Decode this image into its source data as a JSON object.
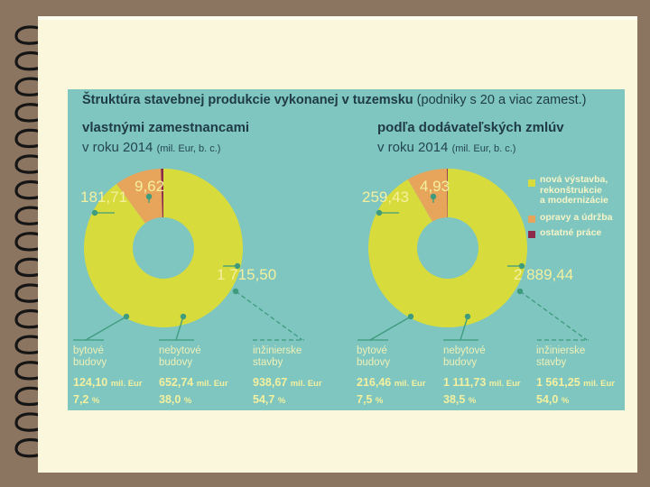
{
  "title": {
    "bold": "Štruktúra stavebnej produkcie vykonanej v tuzemsku",
    "rest": " (podniky s 20 a viac zamest.)"
  },
  "colors": {
    "new": "#d7dc3c",
    "repair": "#e6a55a",
    "other": "#8e2a4a",
    "panel": "#7ec6bf",
    "text_dark": "#1f3a44"
  },
  "legend": [
    {
      "key": "new",
      "label": "nová výstavba,\nrekonštrukcie\na modernizácie"
    },
    {
      "key": "repair",
      "label": "opravy a údržba"
    },
    {
      "key": "other",
      "label": "ostatné práce"
    }
  ],
  "charts": [
    {
      "heading": "vlastnými zamestnancami",
      "year": "v roku 2014",
      "unit": "(mil. Eur,  b. c.)",
      "labels": {
        "new": "1 715,50",
        "repair": "181,71",
        "other": "9,62"
      },
      "breakdown": [
        {
          "label": "bytové\nbudovy",
          "amount": "124,10",
          "unit": "mil. Eur",
          "pct": "7,2",
          "pct_unit": "%"
        },
        {
          "label": "nebytové\nbudovy",
          "amount": "652,74",
          "unit": "mil. Eur",
          "pct": "38,0",
          "pct_unit": "%"
        },
        {
          "label": "inžinierske\nstavby",
          "amount": "938,67",
          "unit": "mil. Eur",
          "pct": "54,7",
          "pct_unit": "%"
        }
      ]
    },
    {
      "heading": "podľa dodávateľských zmlúv",
      "year": "v roku 2014",
      "unit": "(mil. Eur,  b. c.)",
      "labels": {
        "new": "2 889,44",
        "repair": "259,43",
        "other": "4,93"
      },
      "breakdown": [
        {
          "label": "bytové\nbudovy",
          "amount": "216,46",
          "unit": "mil. Eur",
          "pct": "7,5",
          "pct_unit": "%"
        },
        {
          "label": "nebytové\nbudovy",
          "amount": "1 111,73",
          "unit": "mil. Eur",
          "pct": "38,5",
          "pct_unit": "%"
        },
        {
          "label": "inžinierske\nstavby",
          "amount": "1 561,25",
          "unit": "mil. Eur",
          "pct": "54,0",
          "pct_unit": "%"
        }
      ]
    }
  ],
  "chart_data": [
    {
      "type": "pie",
      "categories": [
        "nová výstavba, rekonštrukcie a modernizácie",
        "opravy a údržba",
        "ostatné práce"
      ],
      "values": [
        1715.5,
        181.71,
        9.62
      ]
    },
    {
      "type": "pie",
      "categories": [
        "nová výstavba, rekonštrukcie a modernizácie",
        "opravy a údržba",
        "ostatné práce"
      ],
      "values": [
        2889.44,
        259.43,
        4.93
      ]
    }
  ]
}
